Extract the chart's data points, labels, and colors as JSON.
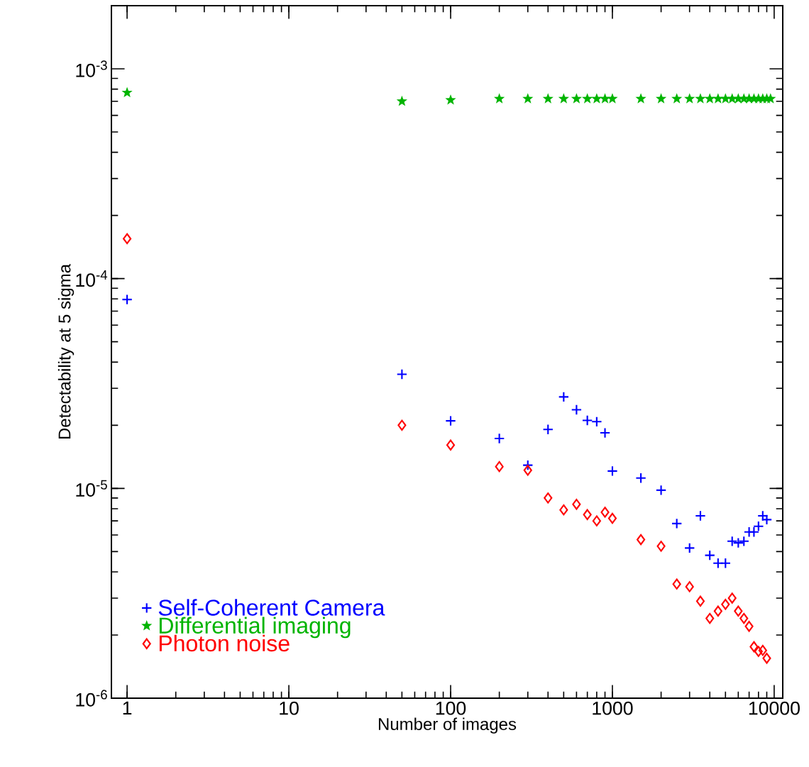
{
  "chart_data": {
    "type": "scatter",
    "xlabel": "Number of images",
    "ylabel": "Detectability at 5 sigma",
    "log": "xy",
    "xlim": [
      0.8,
      11300
    ],
    "ylim": [
      1e-06,
      0.002
    ],
    "xticks": [
      1,
      10,
      100,
      1000,
      10000
    ],
    "yticks": [
      {
        "value": 1e-06,
        "label": "10$^{-6}$"
      },
      {
        "value": 1e-05,
        "label": "10$^{-5}$"
      },
      {
        "value": 0.0001,
        "label": "10$^{-4}$"
      },
      {
        "value": 0.001,
        "label": "10$^{-3}$"
      }
    ],
    "legend": "bottom left",
    "grid": false,
    "series": [
      {
        "name": "Self-Coherent Camera",
        "color": "#0000ff",
        "marker": "cross",
        "x": [
          1,
          50,
          100,
          200,
          300,
          400,
          500,
          600,
          700,
          800,
          900,
          1000,
          1500,
          2000,
          2500,
          3000,
          3500,
          4000,
          4500,
          5000,
          5500,
          6000,
          6500,
          7000,
          7500,
          8000,
          8500,
          9000
        ],
        "values": [
          7.95e-05,
          3.5e-05,
          2.1e-05,
          1.73e-05,
          1.29e-05,
          1.91e-05,
          2.73e-05,
          2.37e-05,
          2.11e-05,
          2.08e-05,
          1.84e-05,
          1.21e-05,
          1.12e-05,
          9.8e-06,
          6.8e-06,
          5.2e-06,
          7.4e-06,
          4.8e-06,
          4.4e-06,
          4.4e-06,
          5.6e-06,
          5.5e-06,
          5.6e-06,
          6.2e-06,
          6.2e-06,
          6.6e-06,
          7.4e-06,
          7.1e-06
        ]
      },
      {
        "name": "Differential imaging",
        "color": "#00b400",
        "marker": "star",
        "x": [
          1,
          50,
          100,
          200,
          300,
          400,
          500,
          600,
          700,
          800,
          900,
          1000,
          1500,
          2000,
          2500,
          3000,
          3500,
          4000,
          4500,
          5000,
          5500,
          6000,
          6500,
          7000,
          7500,
          8000,
          8500,
          9000,
          9500
        ],
        "values": [
          0.00077,
          0.0007,
          0.00071,
          0.00072,
          0.00072,
          0.00072,
          0.00072,
          0.00072,
          0.00072,
          0.00072,
          0.00072,
          0.00072,
          0.00072,
          0.00072,
          0.00072,
          0.00072,
          0.00072,
          0.00072,
          0.00072,
          0.00072,
          0.00072,
          0.00072,
          0.00072,
          0.00072,
          0.00072,
          0.00072,
          0.00072,
          0.00072,
          0.00072
        ]
      },
      {
        "name": "Photon noise",
        "color": "#ff0000",
        "marker": "diamond",
        "x": [
          1,
          50,
          100,
          200,
          300,
          400,
          500,
          600,
          700,
          800,
          900,
          1000,
          1500,
          2000,
          2500,
          3000,
          3500,
          4000,
          4500,
          5000,
          5500,
          6000,
          6500,
          7000,
          7500,
          8000,
          8500,
          9000
        ],
        "values": [
          0.000155,
          2e-05,
          1.61e-05,
          1.27e-05,
          1.22e-05,
          9e-06,
          7.9e-06,
          8.4e-06,
          7.5e-06,
          7e-06,
          7.7e-06,
          7.2e-06,
          5.7e-06,
          5.3e-06,
          3.5e-06,
          3.4e-06,
          2.9e-06,
          2.4e-06,
          2.6e-06,
          2.8e-06,
          3e-06,
          2.6e-06,
          2.4e-06,
          2.2e-06,
          1.76e-06,
          1.67e-06,
          1.69e-06,
          1.55e-06
        ]
      }
    ]
  }
}
